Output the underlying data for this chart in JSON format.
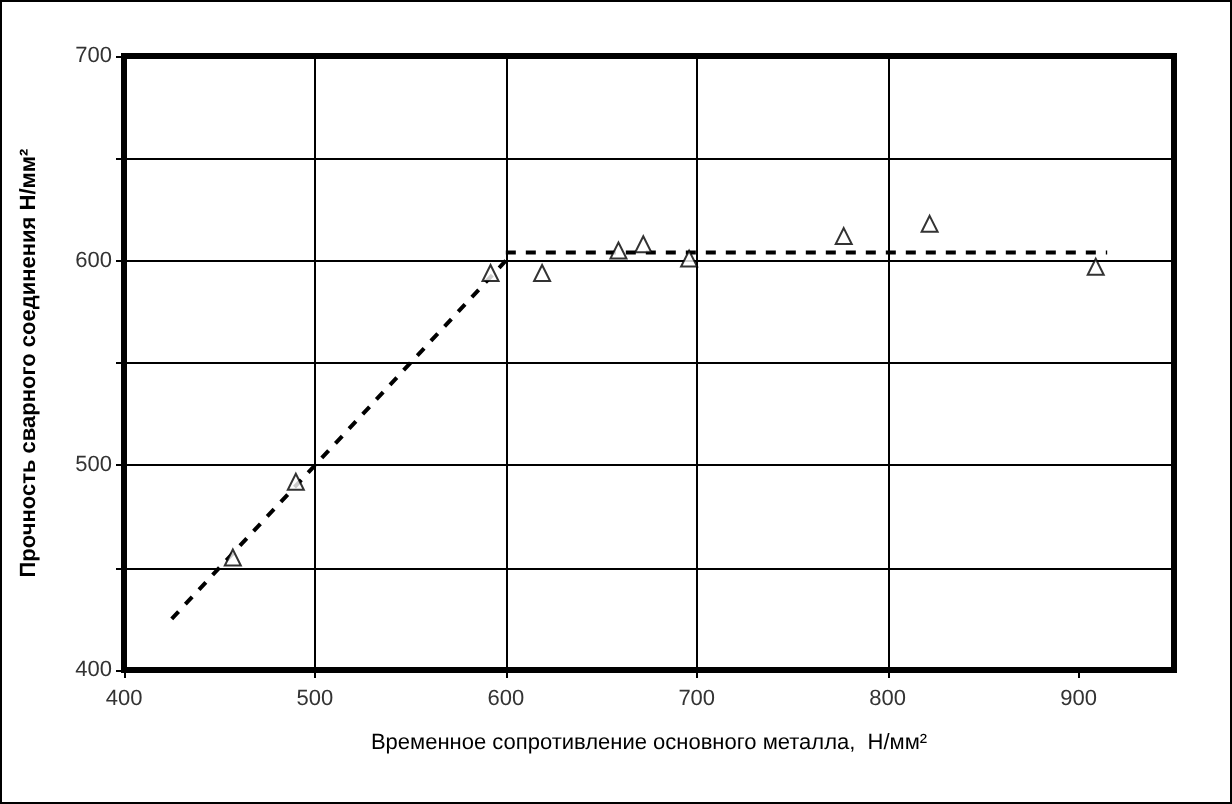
{
  "chart_data": {
    "type": "scatter",
    "xlabel": "Временное сопротивление основного металла,  Н/мм²",
    "ylabel": "Прочность сварного соединения Н/мм²",
    "xlim": [
      400,
      950
    ],
    "xticks": [
      400,
      500,
      600,
      700,
      800,
      900
    ],
    "ylim": [
      400,
      700
    ],
    "yticks": [
      400,
      {
        "value": 450,
        "label": null
      },
      500,
      {
        "value": 550,
        "label": null
      },
      600,
      {
        "value": 650,
        "label": null
      },
      700
    ],
    "grid": true,
    "series": [
      {
        "type": "line",
        "color": "#000000",
        "line_style": "dashed",
        "marker": "none",
        "x": [
          425,
          600
        ],
        "values": [
          425,
          600
        ]
      },
      {
        "type": "line",
        "color": "#000000",
        "line_style": "dashed",
        "marker": "none",
        "x": [
          600,
          915
        ],
        "values": [
          604,
          604
        ]
      },
      {
        "type": "scatter",
        "color": "#000000",
        "marker": "triangle",
        "x": [
          457,
          490,
          592,
          619,
          659,
          672,
          696,
          777,
          822,
          909
        ],
        "values": [
          455,
          492,
          594,
          594,
          605,
          608,
          601,
          612,
          618,
          597
        ]
      }
    ]
  }
}
